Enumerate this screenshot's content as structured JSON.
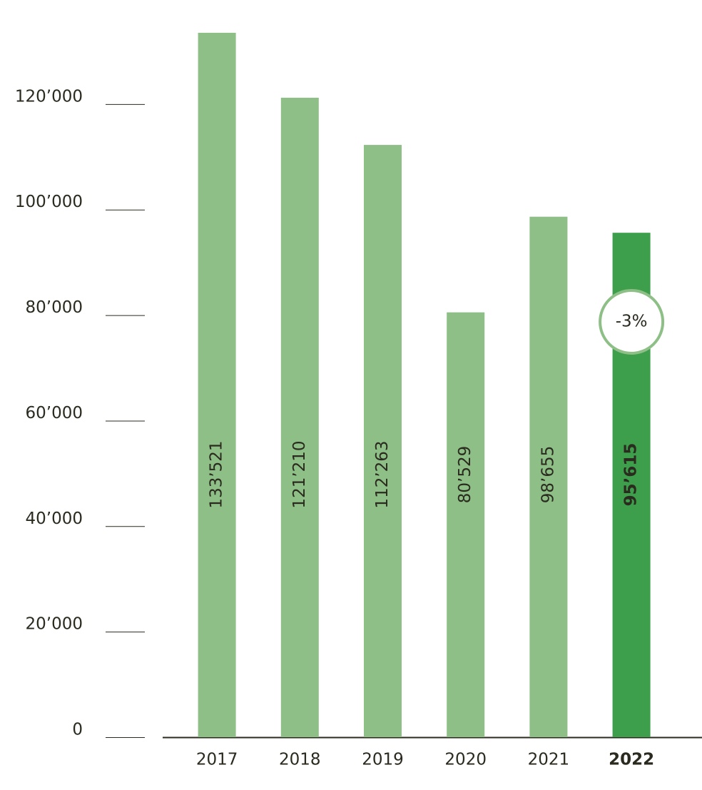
{
  "chart_data": {
    "type": "bar",
    "categories": [
      "2017",
      "2018",
      "2019",
      "2020",
      "2021",
      "2022"
    ],
    "values": [
      133521,
      121210,
      112263,
      80529,
      98655,
      95615
    ],
    "value_labels": [
      "133’521",
      "121’210",
      "112’263",
      "80’529",
      "98’655",
      "95’615"
    ],
    "colors": [
      "#8dbf86",
      "#8dbf86",
      "#8dbf86",
      "#8dbf86",
      "#8dbf86",
      "#3d9e4b"
    ],
    "label_bold": [
      false,
      false,
      false,
      false,
      false,
      true
    ],
    "ylim": [
      0,
      135000
    ],
    "yticks": [
      0,
      {
        "value": 20000,
        "label": "20’000"
      },
      {
        "value": 40000,
        "label": "40’000"
      },
      {
        "value": 60000,
        "label": "60’000"
      },
      {
        "value": 80000,
        "label": "80’000"
      },
      {
        "value": 100000,
        "label": "100’000"
      },
      {
        "value": 120000,
        "label": "120’000"
      }
    ],
    "annotation": {
      "text": "-3%"
    }
  }
}
